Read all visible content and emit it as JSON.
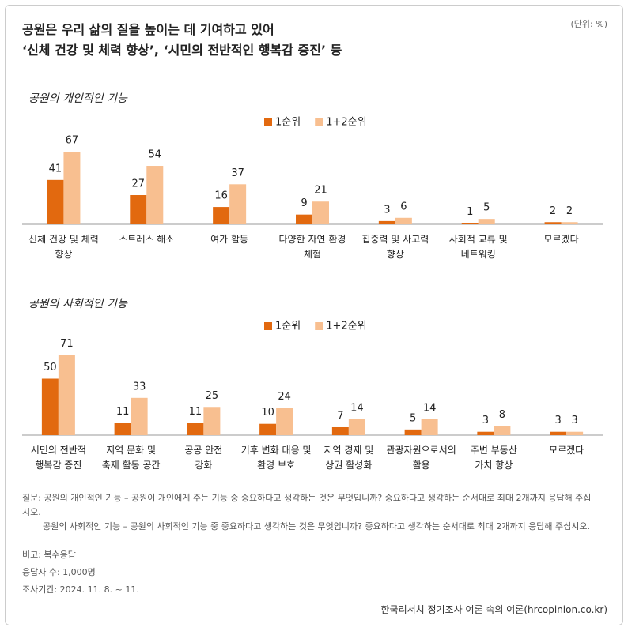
{
  "header": {
    "title_lines": [
      "공원은 우리 삶의 질을 높이는 데 기여하고 있어",
      "‘신체 건강 및 체력 향상’, ‘시민의 전반적인 행복감 증진’ 등"
    ],
    "unit": "(단위: %)"
  },
  "chart_data": [
    {
      "type": "bar",
      "title": "공원의 개인적인 기능",
      "categories": [
        "신체 건강 및 체력\n향상",
        "스트레스 해소",
        "여가 활동",
        "다양한 자연 환경\n체험",
        "집중력 및 사고력\n향상",
        "사회적 교류 및\n네트워킹",
        "모르겠다"
      ],
      "series": [
        {
          "name": "1순위",
          "color": "#e2690f",
          "values": [
            41,
            27,
            16,
            9,
            3,
            1,
            2
          ]
        },
        {
          "name": "1+2순위",
          "color": "#f8bf90",
          "values": [
            67,
            54,
            37,
            21,
            6,
            5,
            2
          ]
        }
      ]
    },
    {
      "type": "bar",
      "title": "공원의 사회적인 기능",
      "categories": [
        "시민의 전반적\n행복감 증진",
        "지역 문화 및\n축제 활동 공간",
        "공공 안전\n강화",
        "기후 변화 대응 및\n환경 보호",
        "지역 경제 및\n상권 활성화",
        "관광자원으로서의\n활용",
        "주변 부동산\n가치 향상",
        "모르겠다"
      ],
      "series": [
        {
          "name": "1순위",
          "color": "#e2690f",
          "values": [
            50,
            11,
            11,
            10,
            7,
            5,
            3,
            3
          ]
        },
        {
          "name": "1+2순위",
          "color": "#f8bf90",
          "values": [
            71,
            33,
            25,
            24,
            14,
            14,
            8,
            3
          ]
        }
      ]
    }
  ],
  "notes": {
    "question_1": "질문: 공원의 개인적인 기능 – 공원이 개인에게 주는 기능 중 중요하다고 생각하는 것은 무엇입니까? 중요하다고 생각하는 순서대로 최대 2개까지 응답해 주십시오.",
    "question_2": "공원의 사회적인 기능 – 공원의 사회적인 기능 중 중요하다고 생각하는 것은 무엇입니까? 중요하다고 생각하는 순서대로 최대 2개까지 응답해 주십시오.",
    "remark": "비고: 복수응답",
    "respondents": "응답자 수: 1,000명",
    "period": "조사기간: 2024. 11. 8. ~ 11.",
    "source": "한국리서치 정기조사 여론 속의 여론(hrcopinion.co.kr)"
  }
}
